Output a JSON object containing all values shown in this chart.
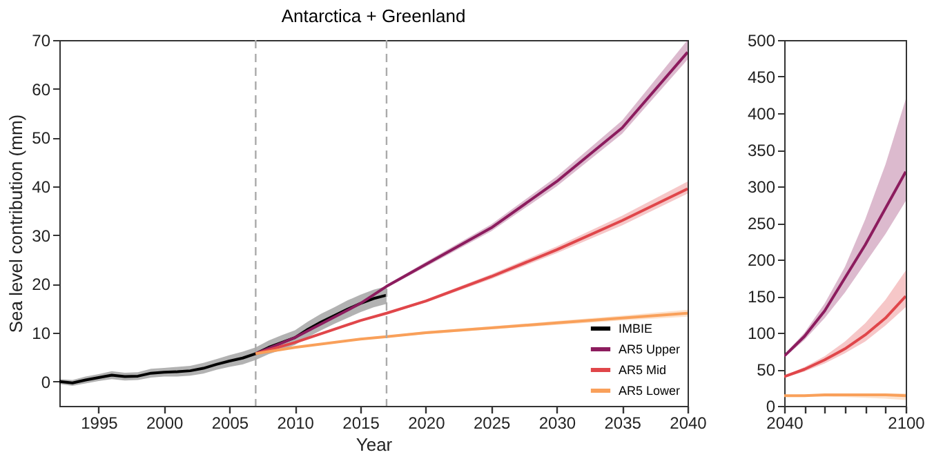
{
  "chart_data": [
    {
      "type": "line",
      "title": "Antarctica + Greenland",
      "xlabel": "Year",
      "ylabel": "Sea level contribution (mm)",
      "xlim": [
        1992,
        2040
      ],
      "ylim": [
        -5,
        70
      ],
      "xticks": [
        1995,
        2000,
        2005,
        2010,
        2015,
        2020,
        2025,
        2030,
        2035,
        2040
      ],
      "yticks": [
        0,
        10,
        20,
        30,
        40,
        50,
        60,
        70
      ],
      "grid": false,
      "legend": "bottom right",
      "line_style": "solid",
      "marker": "none",
      "ref_lines": [
        {
          "axis": "x",
          "value": 2007,
          "color": "#aaaaaa",
          "line_style": "dashed"
        },
        {
          "axis": "x",
          "value": 2017,
          "color": "#aaaaaa",
          "line_style": "dashed"
        }
      ],
      "series": [
        {
          "name": "IMBIE",
          "color": "#000000",
          "x": [
            1992,
            1993,
            1994,
            1995,
            1996,
            1997,
            1998,
            1999,
            2000,
            2001,
            2002,
            2003,
            2004,
            2005,
            2006,
            2007,
            2008,
            2009,
            2010,
            2011,
            2012,
            2013,
            2014,
            2015,
            2016,
            2017
          ],
          "values": [
            0,
            -0.3,
            0.3,
            0.8,
            1.3,
            1.0,
            1.1,
            1.7,
            1.9,
            2.0,
            2.2,
            2.7,
            3.5,
            4.2,
            4.8,
            5.7,
            7.0,
            8.0,
            9.0,
            10.7,
            12.2,
            13.5,
            14.8,
            16.0,
            17.0,
            17.7
          ],
          "lower": [
            -0.5,
            -0.9,
            -0.4,
            0.1,
            0.5,
            0.2,
            0.3,
            0.8,
            1.0,
            1.0,
            1.2,
            1.6,
            2.4,
            3.0,
            3.5,
            4.4,
            5.6,
            6.5,
            7.5,
            9.1,
            10.5,
            11.8,
            13.0,
            14.2,
            15.2,
            15.9
          ],
          "upper": [
            0.5,
            0.3,
            1.0,
            1.5,
            2.1,
            1.8,
            1.9,
            2.6,
            2.8,
            3.0,
            3.2,
            3.8,
            4.6,
            5.4,
            6.1,
            7.0,
            8.4,
            9.5,
            10.5,
            12.3,
            13.9,
            15.2,
            16.6,
            17.8,
            18.8,
            19.5
          ]
        },
        {
          "name": "AR5 Upper",
          "color": "#8c1c5e",
          "x": [
            2007,
            2010,
            2015,
            2017,
            2020,
            2025,
            2030,
            2035,
            2040
          ],
          "values": [
            5.7,
            9,
            16,
            19.5,
            24,
            31.5,
            41,
            52,
            67.5
          ],
          "lower": [
            5.7,
            8.9,
            15.8,
            19.2,
            23.5,
            30.8,
            40,
            50.8,
            66
          ],
          "upper": [
            5.7,
            9.1,
            16.2,
            19.8,
            24.5,
            32.2,
            42,
            53.5,
            70
          ]
        },
        {
          "name": "AR5 Mid",
          "color": "#e0464a",
          "x": [
            2007,
            2010,
            2015,
            2017,
            2020,
            2025,
            2030,
            2035,
            2040
          ],
          "values": [
            5.7,
            8,
            12.5,
            14,
            16.5,
            21.5,
            27,
            33,
            39.5
          ],
          "lower": [
            5.7,
            7.9,
            12.3,
            13.8,
            16.2,
            21,
            26.3,
            32,
            38.5
          ],
          "upper": [
            5.7,
            8.1,
            12.7,
            14.2,
            16.8,
            22,
            27.7,
            34,
            41
          ]
        },
        {
          "name": "AR5 Lower",
          "color": "#f9a05a",
          "x": [
            2007,
            2010,
            2015,
            2017,
            2020,
            2025,
            2030,
            2035,
            2040
          ],
          "values": [
            5.7,
            7,
            8.7,
            9.2,
            10,
            11,
            12,
            13,
            14
          ],
          "lower": [
            5.7,
            6.9,
            8.5,
            9,
            9.7,
            10.7,
            11.6,
            12.5,
            13.3
          ],
          "upper": [
            5.7,
            7.1,
            8.9,
            9.4,
            10.3,
            11.3,
            12.4,
            13.5,
            14.7
          ]
        }
      ]
    },
    {
      "type": "line",
      "xlim": [
        2040,
        2100
      ],
      "ylim": [
        0,
        500
      ],
      "xticks": [
        2040,
        {
          "value": 2050,
          "label": null
        },
        {
          "value": 2060,
          "label": null
        },
        {
          "value": 2070,
          "label": null
        },
        {
          "value": 2080,
          "label": null
        },
        {
          "value": 2090,
          "label": null
        },
        2100
      ],
      "yticks": [
        0,
        50,
        100,
        150,
        200,
        250,
        300,
        350,
        400,
        450,
        500
      ],
      "grid": false,
      "line_style": "solid",
      "marker": "none",
      "series": [
        {
          "color": "#8c1c5e",
          "x": [
            2040,
            2050,
            2060,
            2070,
            2080,
            2090,
            2100
          ],
          "values": [
            68,
            95,
            130,
            175,
            220,
            270,
            320
          ],
          "lower": [
            66,
            90,
            120,
            155,
            195,
            235,
            280
          ],
          "upper": [
            70,
            100,
            140,
            190,
            255,
            330,
            419
          ]
        },
        {
          "color": "#e0464a",
          "x": [
            2040,
            2050,
            2060,
            2070,
            2080,
            2090,
            2100
          ],
          "values": [
            40,
            50,
            63,
            78,
            97,
            120,
            150
          ],
          "lower": [
            38.5,
            47,
            58,
            72,
            88,
            110,
            135
          ],
          "upper": [
            41,
            53,
            68,
            88,
            113,
            145,
            185
          ]
        },
        {
          "color": "#f9a05a",
          "x": [
            2040,
            2050,
            2060,
            2070,
            2080,
            2090,
            2100
          ],
          "values": [
            14,
            14,
            15,
            15,
            15,
            15,
            14
          ],
          "lower": [
            13.3,
            13,
            12.5,
            12,
            11,
            10,
            8
          ],
          "upper": [
            14.7,
            15.5,
            16,
            16.5,
            17,
            17,
            17
          ]
        }
      ]
    }
  ]
}
